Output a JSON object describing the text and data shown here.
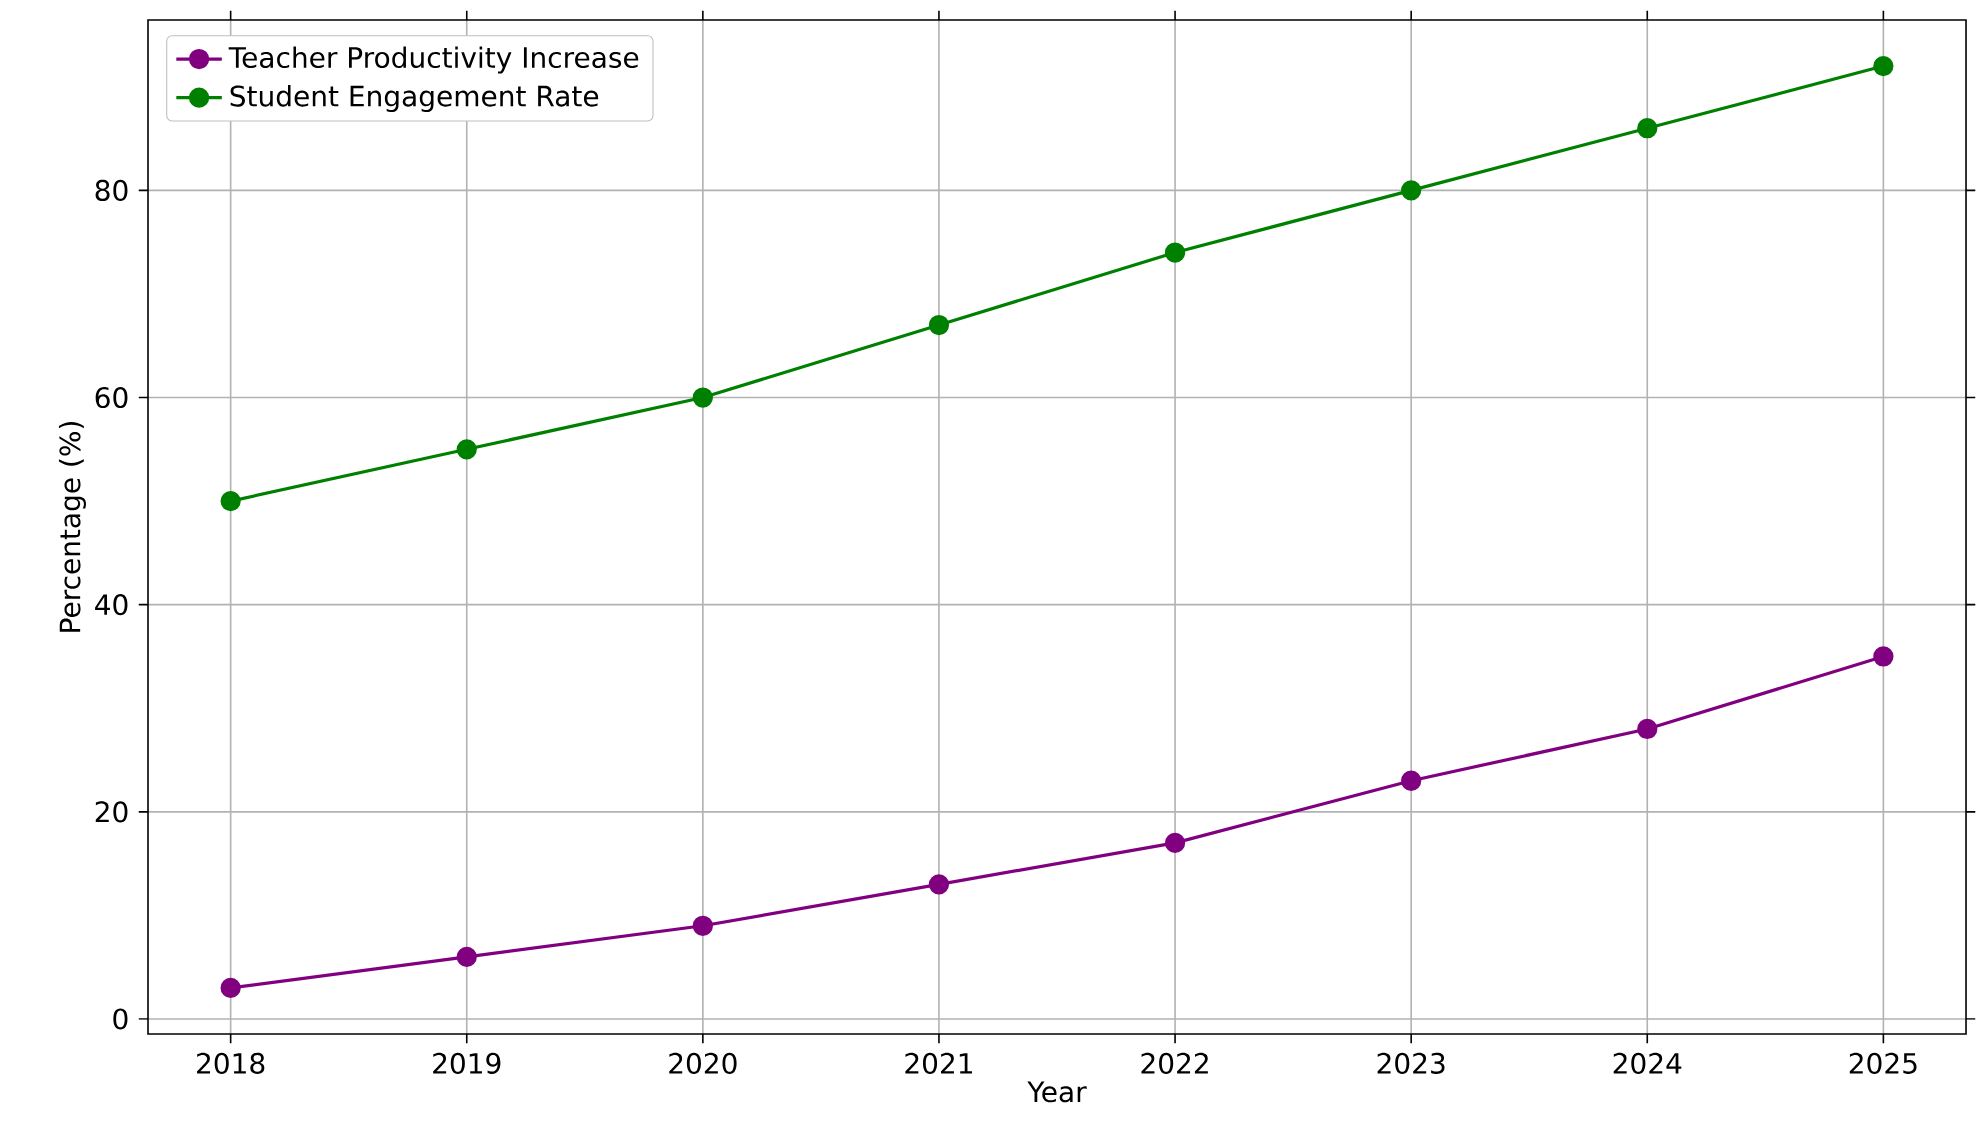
{
  "chart_data": {
    "type": "line",
    "xlabel": "Year",
    "ylabel": "Percentage (%)",
    "x": [
      2018,
      2019,
      2020,
      2021,
      2022,
      2023,
      2024,
      2025
    ],
    "series": [
      {
        "name": "Teacher Productivity Increase",
        "color": "#800080",
        "values": [
          3,
          6,
          9,
          13,
          17,
          23,
          28,
          35
        ]
      },
      {
        "name": "Student Engagement Rate",
        "color": "#008000",
        "values": [
          50,
          55,
          60,
          67,
          74,
          80,
          86,
          92
        ]
      }
    ],
    "xlim": [
      2017.65,
      2025.35
    ],
    "ylim": [
      -1.45,
      96.45
    ],
    "xticks": [
      2018,
      2019,
      2020,
      2021,
      2022,
      2023,
      2024,
      2025
    ],
    "yticks": [
      0,
      20,
      40,
      60,
      80
    ],
    "grid": true,
    "legend": "top left",
    "marker": "circle",
    "line_style": "solid"
  }
}
